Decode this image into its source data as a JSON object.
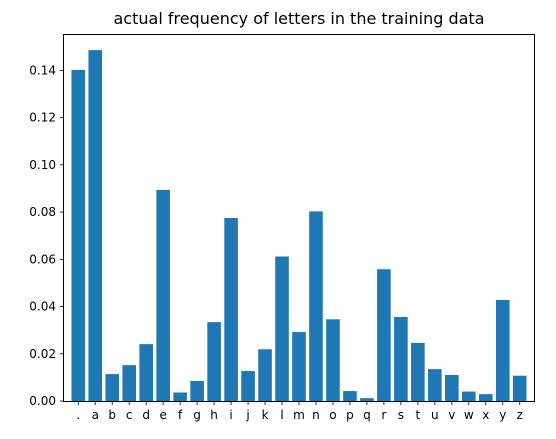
{
  "chart_data": {
    "type": "bar",
    "title": "actual frequency of letters in the training data",
    "xlabel": "",
    "ylabel": "",
    "categories": [
      ".",
      "a",
      "b",
      "c",
      "d",
      "e",
      "f",
      "g",
      "h",
      "i",
      "j",
      "k",
      "l",
      "m",
      "n",
      "o",
      "p",
      "q",
      "r",
      "s",
      "t",
      "u",
      "v",
      "w",
      "x",
      "y",
      "z"
    ],
    "values": [
      0.1402,
      0.1486,
      0.0114,
      0.0152,
      0.0241,
      0.0894,
      0.0036,
      0.0085,
      0.0334,
      0.0775,
      0.0127,
      0.0219,
      0.0612,
      0.0292,
      0.0803,
      0.0346,
      0.0042,
      0.0012,
      0.0558,
      0.0356,
      0.0246,
      0.0135,
      0.011,
      0.004,
      0.0029,
      0.0428,
      0.0107
    ],
    "ylim": [
      0,
      0.155
    ],
    "yticks": [
      0.0,
      0.02,
      0.04,
      0.06,
      0.08,
      0.1,
      0.12,
      0.14
    ],
    "ytick_labels": [
      "0.00",
      "0.02",
      "0.04",
      "0.06",
      "0.08",
      "0.10",
      "0.12",
      "0.14"
    ],
    "grid": false,
    "legend": false,
    "bar_color": "#1f77b4"
  }
}
